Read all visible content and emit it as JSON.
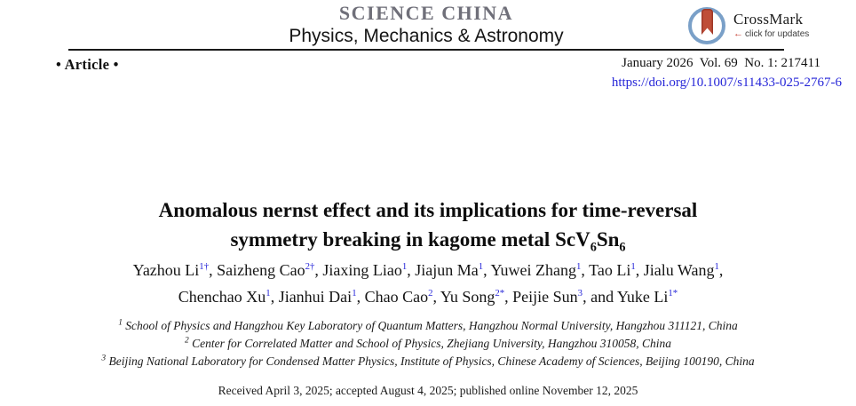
{
  "masthead": {
    "journal": "SCIENCE CHINA",
    "subtitle": "Physics, Mechanics & Astronomy"
  },
  "crossmark": {
    "title": "CrossMark",
    "subtitle": "click for updates"
  },
  "meta": {
    "article_type": "• Article •",
    "issue_line": "January 2026  Vol. 69  No. 1: 217411",
    "doi": "https://doi.org/10.1007/s11433-025-2767-6"
  },
  "title": {
    "line1": [
      {
        "text": "Anomalous nernst effect and its implications for time-reversal"
      }
    ],
    "line2": [
      {
        "text": "symmetry breaking in kagome metal ScV"
      },
      {
        "text": "6",
        "sub": true
      },
      {
        "text": "Sn"
      },
      {
        "text": "6",
        "sub": true
      }
    ]
  },
  "authors": {
    "line1": [
      {
        "name": "Yazhou Li",
        "sup": "1†",
        "sep": ", "
      },
      {
        "name": "Saizheng Cao",
        "sup": "2†",
        "sep": ", "
      },
      {
        "name": "Jiaxing Liao",
        "sup": "1",
        "sep": ", "
      },
      {
        "name": "Jiajun Ma",
        "sup": "1",
        "sep": ", "
      },
      {
        "name": "Yuwei Zhang",
        "sup": "1",
        "sep": ", "
      },
      {
        "name": "Tao Li",
        "sup": "1",
        "sep": ", "
      },
      {
        "name": "Jialu Wang",
        "sup": "1",
        "sep": ","
      }
    ],
    "line2": [
      {
        "name": "Chenchao Xu",
        "sup": "1",
        "sep": ", "
      },
      {
        "name": "Jianhui Dai",
        "sup": "1",
        "sep": ", "
      },
      {
        "name": "Chao Cao",
        "sup": "2",
        "sep": ", "
      },
      {
        "name": "Yu Song",
        "sup": "2*",
        "sep": ", "
      },
      {
        "name": "Peijie Sun",
        "sup": "3",
        "sep": ", and "
      },
      {
        "name": "Yuke Li",
        "sup": "1*",
        "sep": ""
      }
    ]
  },
  "affiliations": [
    [
      {
        "text": "1",
        "sup": true
      },
      {
        "text": " School of Physics and Hangzhou Key Laboratory of Quantum Matters, Hangzhou Normal University, Hangzhou 311121, China"
      }
    ],
    [
      {
        "text": "2",
        "sup": true
      },
      {
        "text": " Center for Correlated Matter and School of Physics, Zhejiang University, Hangzhou 310058, China"
      }
    ],
    [
      {
        "text": "3",
        "sup": true
      },
      {
        "text": " Beijing National Laboratory for Condensed Matter Physics, Institute of Physics, Chinese Academy of Sciences, Beijing 100190, China"
      }
    ]
  ],
  "dates": "Received April 3, 2025; accepted August 4, 2025; published online November 12, 2025",
  "colors": {
    "journal-gray": "#6f6f79",
    "link-blue": "#2626d8",
    "cm-ring": "#7aa0c8",
    "cm-bookmark": "#bf4e38",
    "cm-arrow": "#c43b2e"
  }
}
